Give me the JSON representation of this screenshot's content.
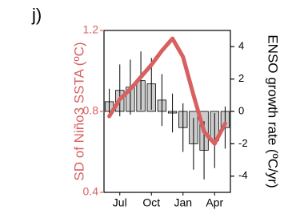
{
  "panel_label": "j)",
  "chart_data": {
    "type": "bar",
    "ylabel": "SD of Niño3 SSTA (ºC)",
    "y2label": "ENSO growth rate (ºC/yr)",
    "categories": [
      null,
      "Jul",
      null,
      null,
      "Oct",
      null,
      null,
      "Jan",
      null,
      null,
      "Apr",
      null
    ],
    "ylim": [
      0.4,
      1.2
    ],
    "yticks": [
      0.4,
      0.8,
      1.2
    ],
    "y2lim": [
      -5,
      5
    ],
    "y2ticks": [
      4,
      2,
      0,
      -2,
      -4
    ],
    "bars": {
      "axis": "y2",
      "color": "#cccccc",
      "values": [
        0.6,
        1.3,
        1.5,
        1.9,
        1.7,
        0.7,
        -0.1,
        -1.0,
        -2.0,
        -2.4,
        -1.8,
        -1.0
      ],
      "errors": [
        0.8,
        1.6,
        1.7,
        1.8,
        1.6,
        1.6,
        1.2,
        1.5,
        1.6,
        1.8,
        1.7,
        1.3
      ]
    },
    "line": {
      "color": "#d96060",
      "values": [
        0.776,
        0.86,
        0.91,
        0.97,
        1.03,
        1.1,
        1.16,
        1.07,
        0.88,
        0.7,
        0.64,
        0.74
      ]
    }
  }
}
